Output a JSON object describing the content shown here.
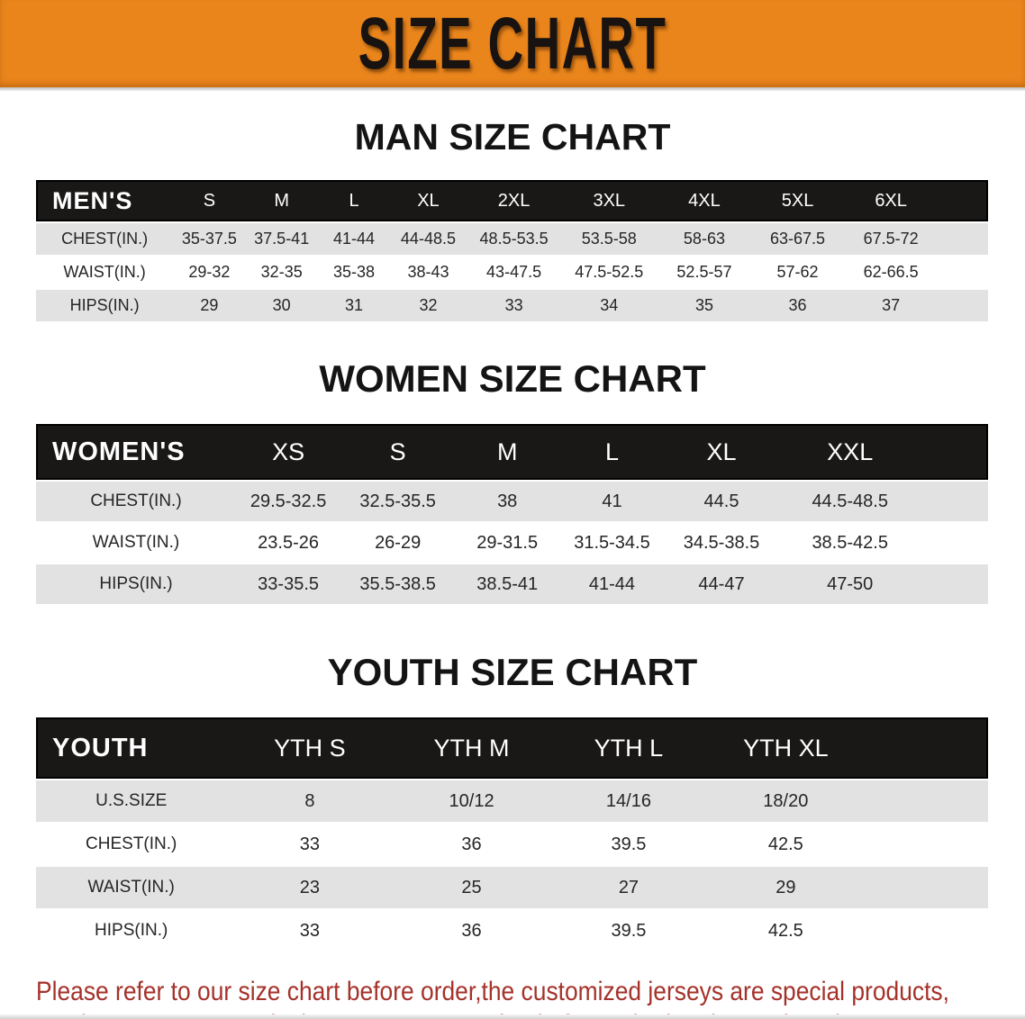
{
  "banner": {
    "title": "SIZE CHART",
    "bg_color": "#EA851C",
    "text_color": "#181310"
  },
  "sections": [
    {
      "heading": "MAN SIZE CHART",
      "header_label": "MEN'S",
      "columns": [
        "S",
        "M",
        "L",
        "XL",
        "2XL",
        "3XL",
        "4XL",
        "5XL",
        "6XL"
      ],
      "rows": [
        {
          "label": "CHEST(IN.)",
          "values": [
            "35-37.5",
            "37.5-41",
            "41-44",
            "44-48.5",
            "48.5-53.5",
            "53.5-58",
            "58-63",
            "63-67.5",
            "67.5-72"
          ]
        },
        {
          "label": "WAIST(IN.)",
          "values": [
            "29-32",
            "32-35",
            "35-38",
            "38-43",
            "43-47.5",
            "47.5-52.5",
            "52.5-57",
            "57-62",
            "62-66.5"
          ]
        },
        {
          "label": "HIPS(IN.)",
          "values": [
            "29",
            "30",
            "31",
            "32",
            "33",
            "34",
            "35",
            "36",
            "37"
          ]
        }
      ]
    },
    {
      "heading": "WOMEN SIZE CHART",
      "header_label": "WOMEN'S",
      "columns": [
        "XS",
        "S",
        "M",
        "L",
        "XL",
        "XXL"
      ],
      "rows": [
        {
          "label": "CHEST(IN.)",
          "values": [
            "29.5-32.5",
            "32.5-35.5",
            "38",
            "41",
            "44.5",
            "44.5-48.5"
          ]
        },
        {
          "label": "WAIST(IN.)",
          "values": [
            "23.5-26",
            "26-29",
            "29-31.5",
            "31.5-34.5",
            "34.5-38.5",
            "38.5-42.5"
          ]
        },
        {
          "label": "HIPS(IN.)",
          "values": [
            "33-35.5",
            "35.5-38.5",
            "38.5-41",
            "41-44",
            "44-47",
            "47-50"
          ]
        }
      ]
    },
    {
      "heading": "YOUTH SIZE CHART",
      "header_label": "YOUTH",
      "columns": [
        "YTH S",
        "YTH M",
        "YTH L",
        "YTH XL"
      ],
      "rows": [
        {
          "label": "U.S.SIZE",
          "values": [
            "8",
            "10/12",
            "14/16",
            "18/20"
          ]
        },
        {
          "label": "CHEST(IN.)",
          "values": [
            "33",
            "36",
            "39.5",
            "42.5"
          ]
        },
        {
          "label": "WAIST(IN.)",
          "values": [
            "23",
            "25",
            "27",
            "29"
          ]
        },
        {
          "label": "HIPS(IN.)",
          "values": [
            "33",
            "36",
            "39.5",
            "42.5"
          ]
        }
      ]
    }
  ],
  "disclaimer": {
    "line1": "Please refer to our size chart before order,the customized jerseys are special products,",
    "line2": "we don't accept cancel, change, teturn or refund after order has been placed!",
    "text_color": "#A5322A"
  },
  "chart_data": {
    "type": "table",
    "tables": [
      {
        "title": "MAN SIZE CHART",
        "columns": [
          "MEN'S",
          "S",
          "M",
          "L",
          "XL",
          "2XL",
          "3XL",
          "4XL",
          "5XL",
          "6XL"
        ],
        "rows": [
          [
            "CHEST(IN.)",
            "35-37.5",
            "37.5-41",
            "41-44",
            "44-48.5",
            "48.5-53.5",
            "53.5-58",
            "58-63",
            "63-67.5",
            "67.5-72"
          ],
          [
            "WAIST(IN.)",
            "29-32",
            "32-35",
            "35-38",
            "38-43",
            "43-47.5",
            "47.5-52.5",
            "52.5-57",
            "57-62",
            "62-66.5"
          ],
          [
            "HIPS(IN.)",
            "29",
            "30",
            "31",
            "32",
            "33",
            "34",
            "35",
            "36",
            "37"
          ]
        ]
      },
      {
        "title": "WOMEN SIZE CHART",
        "columns": [
          "WOMEN'S",
          "XS",
          "S",
          "M",
          "L",
          "XL",
          "XXL"
        ],
        "rows": [
          [
            "CHEST(IN.)",
            "29.5-32.5",
            "32.5-35.5",
            "38",
            "41",
            "44.5",
            "44.5-48.5"
          ],
          [
            "WAIST(IN.)",
            "23.5-26",
            "26-29",
            "29-31.5",
            "31.5-34.5",
            "34.5-38.5",
            "38.5-42.5"
          ],
          [
            "HIPS(IN.)",
            "33-35.5",
            "35.5-38.5",
            "38.5-41",
            "41-44",
            "44-47",
            "47-50"
          ]
        ]
      },
      {
        "title": "YOUTH SIZE CHART",
        "columns": [
          "YOUTH",
          "YTH S",
          "YTH M",
          "YTH L",
          "YTH XL"
        ],
        "rows": [
          [
            "U.S.SIZE",
            "8",
            "10/12",
            "14/16",
            "18/20"
          ],
          [
            "CHEST(IN.)",
            "33",
            "36",
            "39.5",
            "42.5"
          ],
          [
            "WAIST(IN.)",
            "23",
            "25",
            "27",
            "29"
          ],
          [
            "HIPS(IN.)",
            "33",
            "36",
            "39.5",
            "42.5"
          ]
        ]
      }
    ]
  }
}
